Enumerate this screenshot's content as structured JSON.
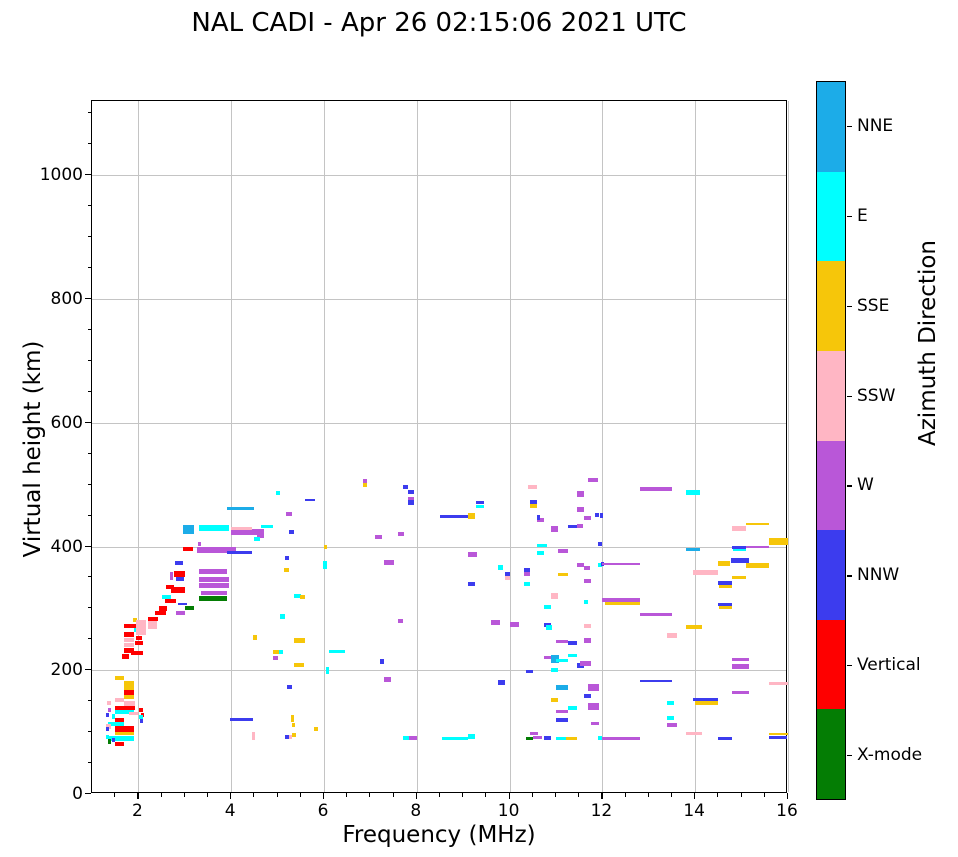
{
  "title": "NAL CADI - Apr 26 02:15:06 2021 UTC",
  "chart_data": {
    "type": "scatter",
    "title": "NAL CADI - Apr 26 02:15:06 2021 UTC",
    "xlabel": "Frequency (MHz)",
    "ylabel": "Virtual height (km)",
    "xlim": [
      1,
      16
    ],
    "ylim": [
      0,
      1120
    ],
    "xticks": [
      2,
      4,
      6,
      8,
      10,
      12,
      14,
      16
    ],
    "yticks": [
      0,
      200,
      400,
      600,
      800,
      1000
    ],
    "minor_x_step": 0.5,
    "minor_y_step": 50,
    "grid": true,
    "grid_color": "#c4c4c4",
    "colorbar": {
      "label": "Azimuth Direction",
      "categories": [
        {
          "key": "NNE",
          "label": "NNE",
          "color": "#1cace8"
        },
        {
          "key": "E",
          "label": "E",
          "color": "#00ffff"
        },
        {
          "key": "SSE",
          "label": "SSE",
          "color": "#f6c60a"
        },
        {
          "key": "SSW",
          "label": "SSW",
          "color": "#ffb6c4"
        },
        {
          "key": "W",
          "label": "W",
          "color": "#b957d8"
        },
        {
          "key": "NNW",
          "label": "NNW",
          "color": "#3c3cee"
        },
        {
          "key": "V",
          "label": "Vertical",
          "color": "#fe0000"
        },
        {
          "key": "X",
          "label": "X-mode",
          "color": "#047d04"
        }
      ]
    },
    "points_format": [
      "freq_start_MHz",
      "freq_end_MHz",
      "height_km",
      "direction",
      "thickness_km(optional,default 7)"
    ],
    "points": [
      [
        1.5,
        1.7,
        188,
        "SSE"
      ],
      [
        1.68,
        1.9,
        175,
        "SSE",
        14
      ],
      [
        1.68,
        1.9,
        164,
        "V",
        7
      ],
      [
        1.68,
        1.9,
        157,
        "SSE",
        6
      ],
      [
        1.5,
        1.7,
        152,
        "SSW"
      ],
      [
        1.68,
        1.92,
        146,
        "SSW"
      ],
      [
        1.33,
        1.42,
        147,
        "SSW"
      ],
      [
        1.5,
        1.92,
        139,
        "V",
        8
      ],
      [
        1.35,
        1.42,
        136,
        "W"
      ],
      [
        1.5,
        1.9,
        133,
        "E",
        6
      ],
      [
        1.8,
        2.0,
        130,
        "SSW",
        6
      ],
      [
        2.02,
        2.1,
        136,
        "V"
      ],
      [
        2.05,
        2.13,
        128,
        "V"
      ],
      [
        2.02,
        2.1,
        124,
        "E"
      ],
      [
        2.03,
        2.11,
        118,
        "NNW"
      ],
      [
        1.3,
        1.37,
        128,
        "NNW"
      ],
      [
        1.43,
        1.5,
        125,
        "E"
      ],
      [
        1.5,
        1.68,
        120,
        "V",
        6
      ],
      [
        1.35,
        1.68,
        113,
        "E",
        6
      ],
      [
        1.3,
        1.4,
        109,
        "SSW"
      ],
      [
        1.3,
        1.37,
        105,
        "NNW"
      ],
      [
        1.5,
        1.9,
        105,
        "V",
        9
      ],
      [
        1.5,
        1.9,
        98,
        "SSE",
        6
      ],
      [
        1.35,
        1.9,
        90,
        "E",
        8
      ],
      [
        1.3,
        1.37,
        92,
        "E"
      ],
      [
        1.35,
        1.42,
        85,
        "X"
      ],
      [
        1.43,
        1.5,
        87,
        "NNW"
      ],
      [
        1.5,
        1.7,
        81,
        "V",
        6
      ],
      [
        1.65,
        1.8,
        222,
        "V"
      ],
      [
        1.85,
        2.1,
        228,
        "V"
      ],
      [
        1.7,
        1.9,
        232,
        "V"
      ],
      [
        1.7,
        1.9,
        241,
        "SSW"
      ],
      [
        1.7,
        1.9,
        249,
        "SSW"
      ],
      [
        1.92,
        2.1,
        244,
        "V"
      ],
      [
        1.95,
        2.08,
        252,
        "V"
      ],
      [
        1.7,
        1.9,
        258,
        "V"
      ],
      [
        2.0,
        2.1,
        263,
        "V"
      ],
      [
        1.9,
        1.97,
        266,
        "E"
      ],
      [
        1.7,
        1.94,
        271,
        "V"
      ],
      [
        1.88,
        1.96,
        281,
        "SSE"
      ],
      [
        1.94,
        2.17,
        269,
        "SSW",
        24
      ],
      [
        2.2,
        2.4,
        273,
        "SSW",
        14
      ],
      [
        2.2,
        2.42,
        283,
        "V"
      ],
      [
        2.35,
        2.6,
        292,
        "V"
      ],
      [
        2.45,
        2.62,
        300,
        "V"
      ],
      [
        2.5,
        2.7,
        318,
        "E"
      ],
      [
        2.58,
        2.8,
        312,
        "V"
      ],
      [
        2.6,
        2.76,
        335,
        "V"
      ],
      [
        2.7,
        3.0,
        330,
        "V",
        10
      ],
      [
        2.85,
        3.05,
        307,
        "NNW",
        4
      ],
      [
        2.8,
        3.0,
        292,
        "W"
      ],
      [
        2.77,
        3.0,
        356,
        "V",
        9
      ],
      [
        2.68,
        2.74,
        352,
        "W",
        12
      ],
      [
        2.8,
        2.98,
        348,
        "NNW",
        6
      ],
      [
        2.78,
        2.96,
        373,
        "NNW"
      ],
      [
        2.96,
        3.17,
        396,
        "V"
      ],
      [
        3.28,
        3.36,
        404,
        "W"
      ],
      [
        2.96,
        3.2,
        427,
        "NNE",
        15
      ],
      [
        3.3,
        3.95,
        430,
        "E",
        10
      ],
      [
        3.9,
        4.5,
        462,
        "NNE",
        5
      ],
      [
        3.26,
        4.1,
        394,
        "W",
        9
      ],
      [
        3.9,
        4.45,
        390,
        "NNW",
        5
      ],
      [
        4.0,
        4.7,
        423,
        "W",
        9
      ],
      [
        4.0,
        4.45,
        429,
        "SSW",
        4
      ],
      [
        4.55,
        4.7,
        421,
        "W",
        16
      ],
      [
        4.65,
        4.9,
        432,
        "E",
        5
      ],
      [
        4.5,
        4.62,
        412,
        "E"
      ],
      [
        5.25,
        5.35,
        423,
        "NNW"
      ],
      [
        3.3,
        3.9,
        359,
        "W",
        8
      ],
      [
        3.3,
        3.95,
        347,
        "W",
        8
      ],
      [
        3.3,
        3.95,
        337,
        "W",
        8
      ],
      [
        3.35,
        3.9,
        325,
        "W",
        6
      ],
      [
        3.3,
        3.9,
        316,
        "X",
        7
      ],
      [
        3.0,
        3.2,
        301,
        "X"
      ],
      [
        4.97,
        5.06,
        487,
        "E"
      ],
      [
        5.6,
        5.8,
        475,
        "NNW",
        4
      ],
      [
        5.18,
        5.3,
        452,
        "W"
      ],
      [
        5.15,
        5.25,
        381,
        "NNW"
      ],
      [
        5.13,
        5.24,
        362,
        "SSE"
      ],
      [
        5.36,
        5.5,
        320,
        "E"
      ],
      [
        5.48,
        5.6,
        318,
        "SSE"
      ],
      [
        5.05,
        5.15,
        287,
        "E"
      ],
      [
        6.0,
        6.06,
        399,
        "SSE"
      ],
      [
        5.98,
        6.06,
        370,
        "E",
        12
      ],
      [
        6.1,
        6.46,
        230,
        "E",
        5
      ],
      [
        6.05,
        6.11,
        200,
        "E",
        12
      ],
      [
        6.83,
        6.92,
        505,
        "W"
      ],
      [
        6.83,
        6.92,
        499,
        "SSE"
      ],
      [
        7.09,
        7.24,
        415,
        "W"
      ],
      [
        7.6,
        7.72,
        420,
        "W"
      ],
      [
        7.3,
        7.5,
        374,
        "W"
      ],
      [
        7.7,
        7.8,
        496,
        "NNW"
      ],
      [
        7.8,
        7.95,
        488,
        "NNW"
      ],
      [
        7.8,
        7.95,
        477,
        "W"
      ],
      [
        7.8,
        7.95,
        471,
        "NNW"
      ],
      [
        7.6,
        7.7,
        280,
        "W"
      ],
      [
        7.3,
        7.45,
        185,
        "W"
      ],
      [
        7.2,
        7.3,
        214,
        "NNW"
      ],
      [
        4.47,
        4.55,
        253,
        "SSE"
      ],
      [
        5.36,
        5.6,
        248,
        "SSE"
      ],
      [
        4.9,
        5.03,
        230,
        "SSE"
      ],
      [
        5.03,
        5.12,
        230,
        "E"
      ],
      [
        4.9,
        5.0,
        220,
        "W"
      ],
      [
        5.36,
        5.57,
        209,
        "SSE"
      ],
      [
        5.2,
        5.3,
        173,
        "NNW"
      ],
      [
        3.97,
        4.47,
        121,
        "NNW",
        5
      ],
      [
        5.28,
        5.34,
        122,
        "SSE",
        12
      ],
      [
        5.3,
        5.36,
        111,
        "SSE"
      ],
      [
        5.78,
        5.87,
        105,
        "SSE"
      ],
      [
        4.45,
        4.52,
        94,
        "SSW",
        12
      ],
      [
        5.15,
        5.24,
        92,
        "NNW"
      ],
      [
        5.24,
        5.31,
        92,
        "SSW"
      ],
      [
        5.32,
        5.4,
        95,
        "SSE"
      ],
      [
        7.7,
        7.83,
        91,
        "E"
      ],
      [
        7.83,
        8.0,
        91,
        "W"
      ],
      [
        8.5,
        9.1,
        449,
        "NNW",
        5
      ],
      [
        9.1,
        9.25,
        449,
        "SSE",
        9
      ],
      [
        9.27,
        9.45,
        471,
        "NNW",
        6
      ],
      [
        9.27,
        9.45,
        465,
        "E",
        5
      ],
      [
        8.55,
        9.1,
        90,
        "E",
        5
      ],
      [
        9.1,
        9.25,
        93,
        "E"
      ],
      [
        9.1,
        9.3,
        387,
        "W"
      ],
      [
        9.1,
        9.25,
        339,
        "NNW"
      ],
      [
        9.75,
        9.85,
        366,
        "E"
      ],
      [
        9.9,
        10.0,
        355,
        "NNW",
        6
      ],
      [
        9.9,
        10.0,
        349,
        "SSW",
        6
      ],
      [
        9.6,
        9.8,
        277,
        "W"
      ],
      [
        9.75,
        9.9,
        180,
        "NNW"
      ],
      [
        10.0,
        10.2,
        274,
        "W"
      ],
      [
        10.35,
        10.5,
        198,
        "NNW",
        5
      ],
      [
        10.3,
        10.45,
        362,
        "NNW",
        6
      ],
      [
        10.3,
        10.45,
        356,
        "W",
        6
      ],
      [
        10.4,
        10.6,
        496,
        "SSW"
      ],
      [
        10.45,
        10.6,
        471,
        "NNW"
      ],
      [
        10.45,
        10.6,
        466,
        "SSE",
        6
      ],
      [
        10.6,
        10.75,
        443,
        "W",
        7
      ],
      [
        10.58,
        10.66,
        447,
        "NNW"
      ],
      [
        10.9,
        11.05,
        428,
        "W",
        9
      ],
      [
        10.6,
        10.8,
        402,
        "E",
        5
      ],
      [
        10.6,
        10.75,
        389,
        "E"
      ],
      [
        11.05,
        11.25,
        393,
        "W",
        7
      ],
      [
        11.25,
        11.5,
        433,
        "NNW",
        5
      ],
      [
        11.45,
        11.58,
        433,
        "W"
      ],
      [
        11.45,
        11.6,
        485,
        "W",
        9
      ],
      [
        11.45,
        11.6,
        460,
        "W"
      ],
      [
        11.6,
        11.75,
        446,
        "W"
      ],
      [
        11.7,
        11.9,
        507,
        "W"
      ],
      [
        11.85,
        11.93,
        451,
        "NNW"
      ],
      [
        11.94,
        12.02,
        450,
        "NNW"
      ],
      [
        11.9,
        12.0,
        404,
        "NNW"
      ],
      [
        11.45,
        11.6,
        370,
        "W"
      ],
      [
        11.6,
        11.73,
        365,
        "W"
      ],
      [
        11.9,
        12.0,
        370,
        "E"
      ],
      [
        11.96,
        12.03,
        372,
        "NNW"
      ],
      [
        11.05,
        11.25,
        355,
        "SSE",
        5
      ],
      [
        10.3,
        10.45,
        339,
        "E"
      ],
      [
        11.6,
        11.75,
        344,
        "W"
      ],
      [
        10.9,
        11.05,
        320,
        "SSW",
        11
      ],
      [
        10.75,
        10.9,
        302,
        "E"
      ],
      [
        11.6,
        11.7,
        310,
        "E"
      ],
      [
        12.0,
        12.8,
        372,
        "W",
        4
      ],
      [
        12.0,
        12.8,
        314,
        "W",
        6
      ],
      [
        12.05,
        12.8,
        308,
        "SSE",
        4
      ],
      [
        11.9,
        12.0,
        90,
        "E"
      ],
      [
        12.0,
        12.8,
        90,
        "W",
        5
      ],
      [
        10.75,
        10.9,
        273,
        "NNW"
      ],
      [
        10.78,
        10.92,
        269,
        "E"
      ],
      [
        11.6,
        11.75,
        272,
        "SSW"
      ],
      [
        11.0,
        11.25,
        247,
        "W",
        5
      ],
      [
        11.25,
        11.45,
        244,
        "NNW",
        7
      ],
      [
        11.6,
        11.75,
        248,
        "W"
      ],
      [
        10.75,
        11.0,
        221,
        "W",
        5
      ],
      [
        10.9,
        11.06,
        218,
        "NNE",
        13
      ],
      [
        11.0,
        11.25,
        216,
        "E",
        5
      ],
      [
        11.25,
        11.45,
        224,
        "E",
        6
      ],
      [
        11.45,
        11.6,
        207,
        "NNW",
        8
      ],
      [
        11.52,
        11.75,
        211,
        "W"
      ],
      [
        10.9,
        11.05,
        200,
        "E"
      ],
      [
        11.0,
        11.25,
        172,
        "NNE",
        7
      ],
      [
        11.7,
        11.92,
        172,
        "W",
        11
      ],
      [
        11.6,
        11.75,
        158,
        "NNW",
        6
      ],
      [
        10.9,
        11.05,
        152,
        "SSE",
        6
      ],
      [
        11.7,
        11.92,
        142,
        "W",
        11
      ],
      [
        11.0,
        11.25,
        134,
        "W",
        5
      ],
      [
        11.25,
        11.45,
        139,
        "E",
        5
      ],
      [
        11.0,
        11.25,
        120,
        "NNW",
        6
      ],
      [
        11.75,
        11.92,
        114,
        "W",
        5
      ],
      [
        10.45,
        10.62,
        98,
        "W",
        4
      ],
      [
        10.35,
        10.5,
        90,
        "X",
        5
      ],
      [
        10.5,
        10.7,
        91,
        "W",
        5
      ],
      [
        10.75,
        10.9,
        90,
        "NNW"
      ],
      [
        11.0,
        11.22,
        90,
        "E",
        5
      ],
      [
        11.22,
        11.45,
        90,
        "SSE",
        5
      ],
      [
        12.8,
        13.5,
        493,
        "W",
        6
      ],
      [
        13.8,
        14.1,
        488,
        "E",
        8
      ],
      [
        13.8,
        14.1,
        395,
        "NNE",
        4
      ],
      [
        15.1,
        15.58,
        436,
        "SSE",
        3
      ],
      [
        14.8,
        15.1,
        429,
        "SSW",
        7
      ],
      [
        15.6,
        16.0,
        408,
        "SSE",
        10
      ],
      [
        14.8,
        15.1,
        398,
        "NNW",
        5
      ],
      [
        14.82,
        15.1,
        394,
        "E",
        4
      ],
      [
        15.1,
        15.58,
        399,
        "W",
        4
      ],
      [
        14.5,
        14.76,
        372,
        "SSE",
        8
      ],
      [
        14.77,
        15.15,
        377,
        "NNW",
        8
      ],
      [
        15.1,
        15.58,
        370,
        "SSE",
        8
      ],
      [
        13.95,
        14.5,
        358,
        "SSW",
        7
      ],
      [
        14.8,
        15.1,
        350,
        "SSE",
        5
      ],
      [
        14.5,
        14.8,
        341,
        "NNW",
        5
      ],
      [
        14.52,
        14.8,
        336,
        "SSE",
        5
      ],
      [
        14.5,
        14.8,
        306,
        "NNW",
        5
      ],
      [
        14.52,
        14.8,
        301,
        "SSE",
        5
      ],
      [
        12.8,
        13.5,
        290,
        "W",
        5
      ],
      [
        13.8,
        14.15,
        270,
        "SSE",
        7
      ],
      [
        13.4,
        13.6,
        256,
        "SSW"
      ],
      [
        14.8,
        15.15,
        217,
        "W",
        5
      ],
      [
        14.8,
        15.15,
        206,
        "W",
        7
      ],
      [
        12.8,
        13.5,
        183,
        "NNW",
        3
      ],
      [
        15.6,
        16.0,
        179,
        "SSW",
        5
      ],
      [
        14.8,
        15.15,
        164,
        "W",
        4
      ],
      [
        13.95,
        14.5,
        152,
        "NNW",
        5
      ],
      [
        14.0,
        14.5,
        147,
        "SSE",
        5
      ],
      [
        13.4,
        13.55,
        147,
        "E"
      ],
      [
        13.4,
        13.55,
        123,
        "E"
      ],
      [
        13.4,
        13.6,
        112,
        "W"
      ],
      [
        13.8,
        14.15,
        98,
        "SSW",
        4
      ],
      [
        14.5,
        14.8,
        90,
        "NNW",
        5
      ],
      [
        15.6,
        16.0,
        97,
        "SSE",
        3
      ],
      [
        15.6,
        15.98,
        92,
        "NNW",
        5
      ]
    ]
  }
}
